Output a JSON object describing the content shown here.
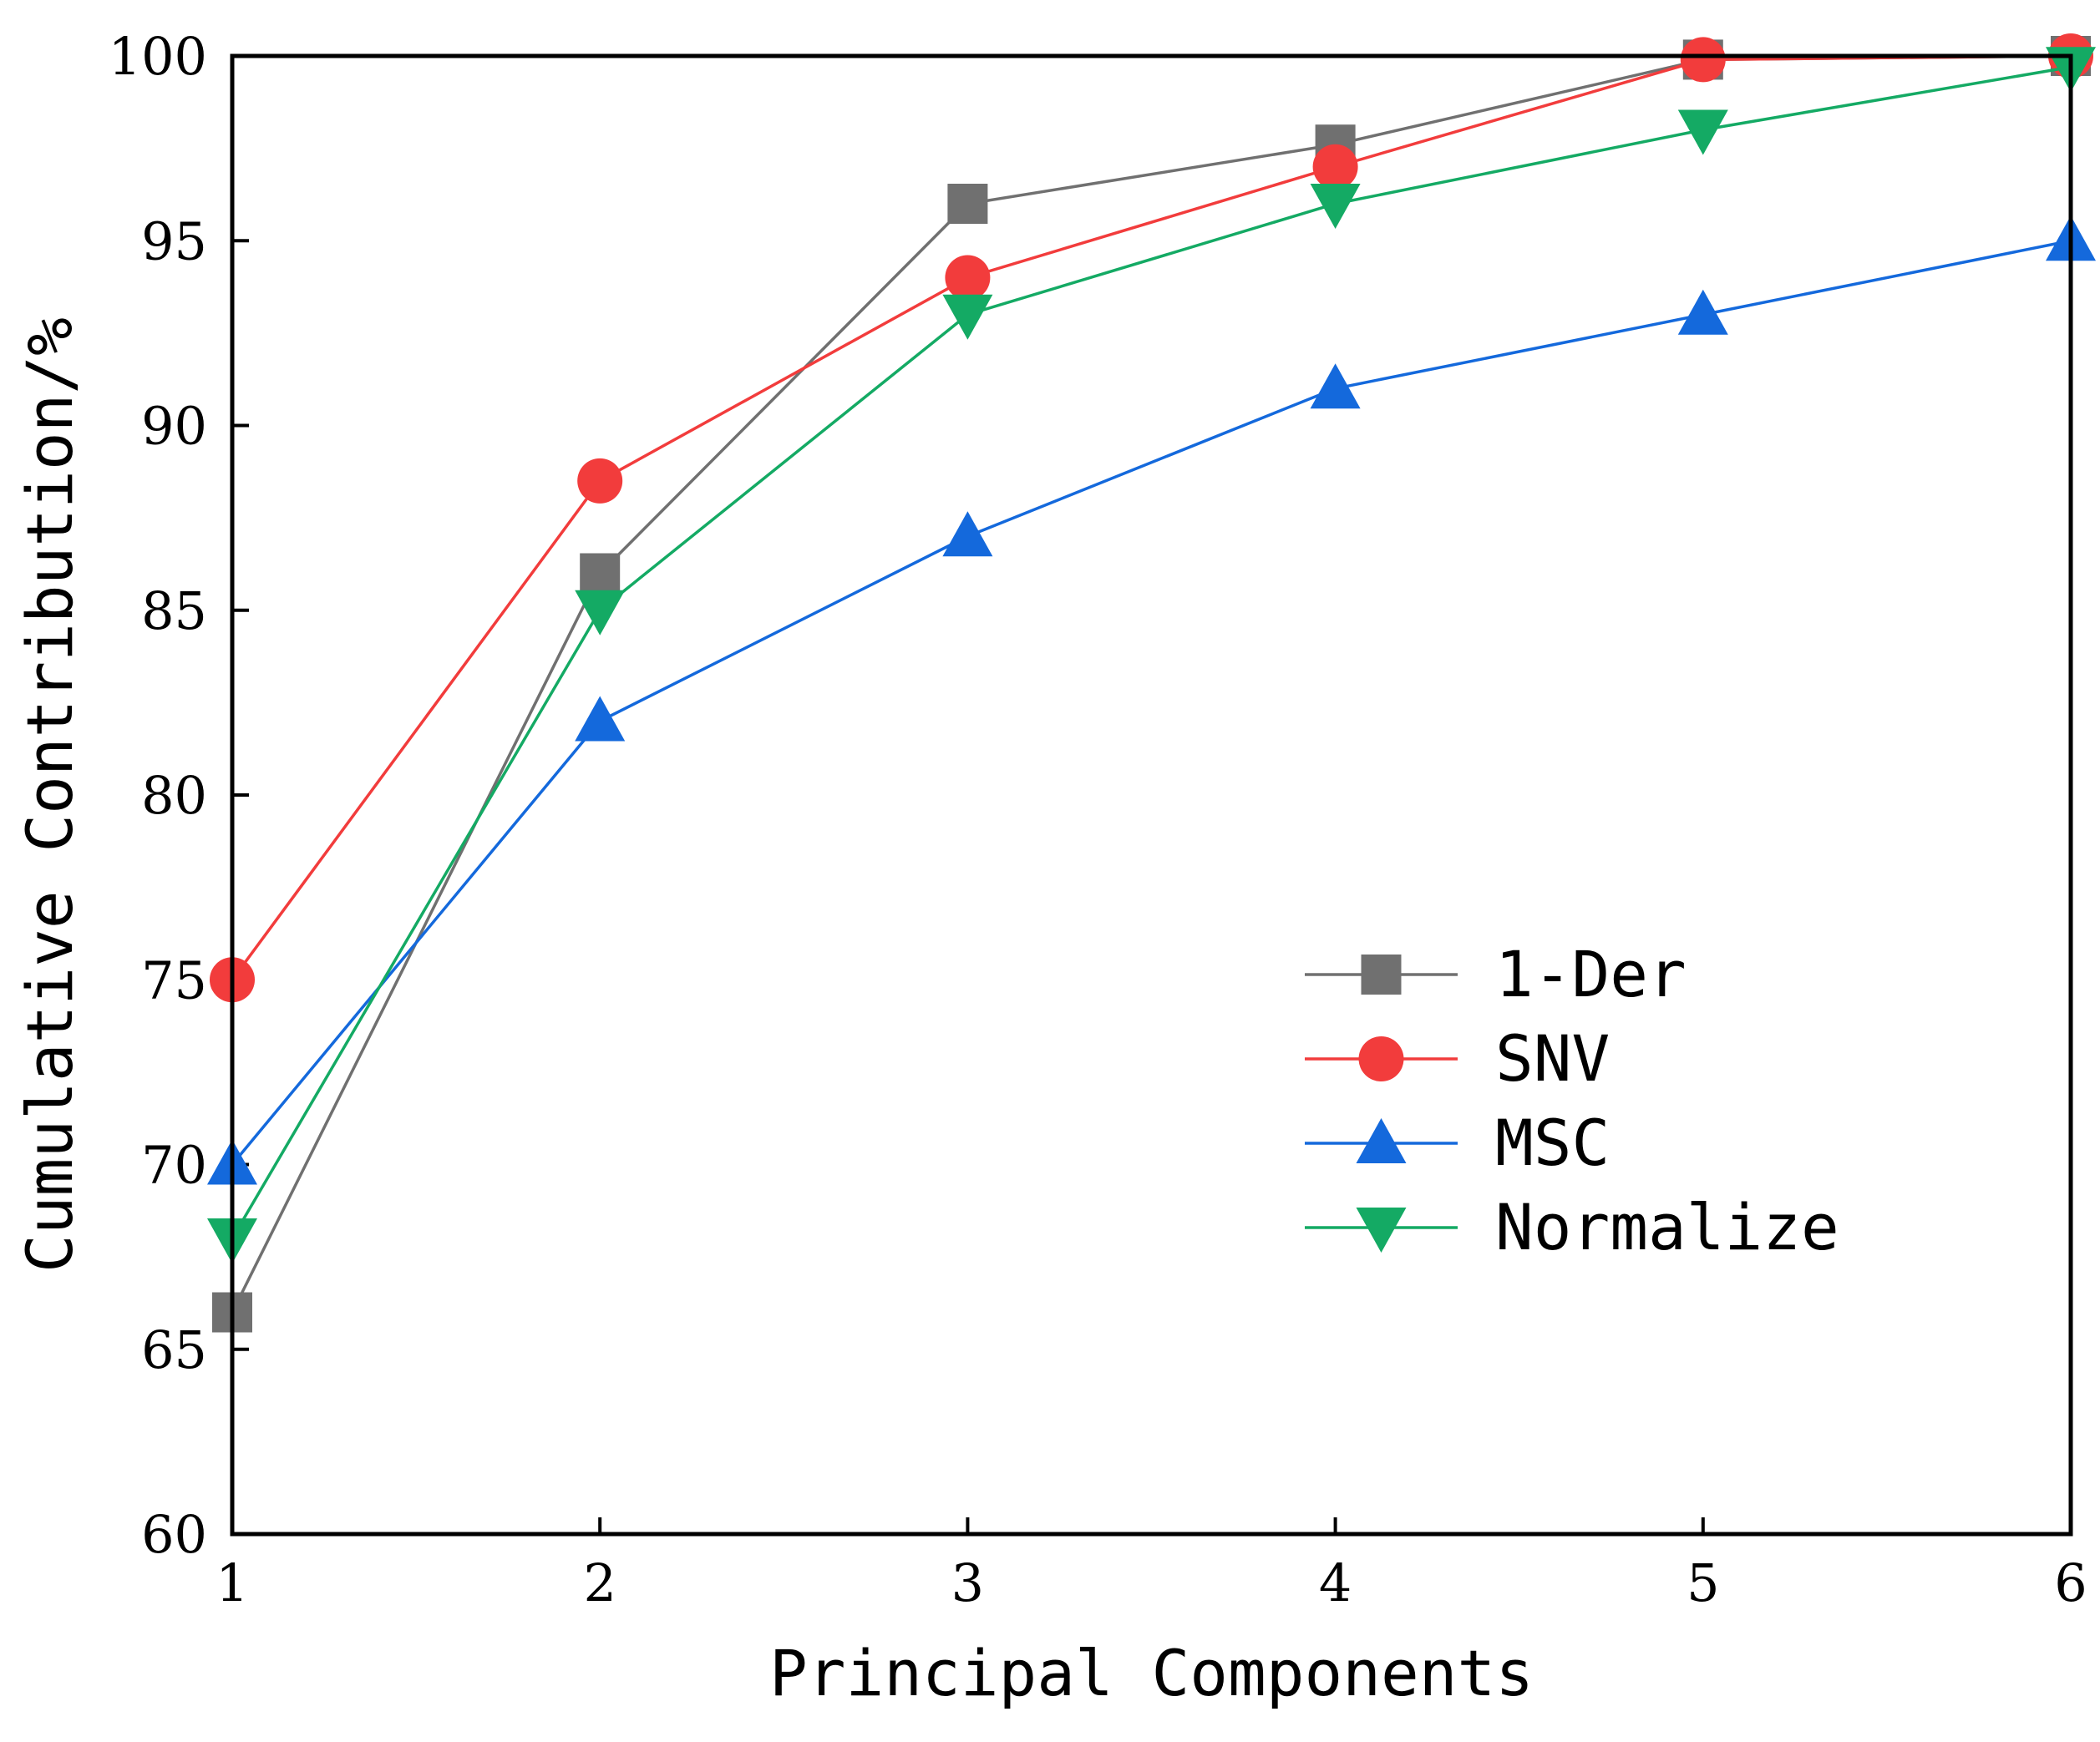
{
  "chart_data": {
    "type": "line",
    "title": "",
    "xlabel": "Principal Components",
    "ylabel": "Cumulative Contribution/%",
    "x": [
      1,
      2,
      3,
      4,
      5,
      6
    ],
    "xlim": [
      1,
      6
    ],
    "ylim": [
      60,
      100
    ],
    "xticks": [
      "1",
      "2",
      "3",
      "4",
      "5",
      "6"
    ],
    "yticks": [
      "60",
      "65",
      "70",
      "75",
      "80",
      "85",
      "90",
      "95",
      "100"
    ],
    "grid": false,
    "legend_position": "center-right",
    "series": [
      {
        "name": "1-Der",
        "color": "#707070",
        "marker": "square",
        "values": [
          66,
          86,
          96,
          97.6,
          99.9,
          100
        ]
      },
      {
        "name": "SNV",
        "color": "#f23c3c",
        "marker": "circle",
        "values": [
          75,
          88.5,
          94,
          97,
          99.9,
          100
        ]
      },
      {
        "name": "MSC",
        "color": "#1469dc",
        "marker": "triangle-up",
        "values": [
          70,
          82,
          87,
          91,
          93,
          95
        ]
      },
      {
        "name": "Normalize",
        "color": "#14aa64",
        "marker": "triangle-down",
        "values": [
          68,
          85,
          93,
          96,
          98,
          99.7
        ]
      }
    ]
  }
}
